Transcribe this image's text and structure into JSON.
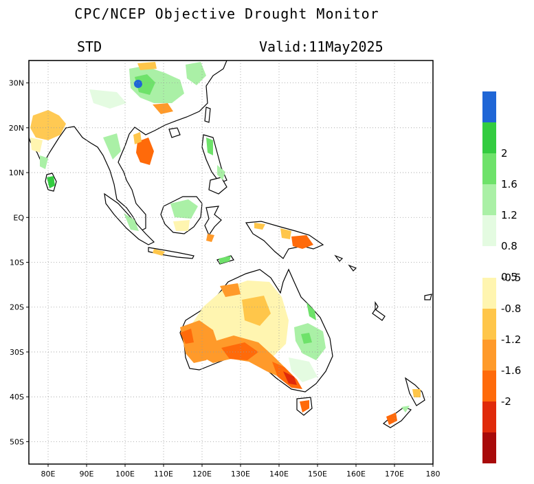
{
  "header": {
    "title": "CPC/NCEP Objective Drought Monitor",
    "variable": "STD",
    "valid": "Valid:11May2025"
  },
  "map": {
    "lon_range": [
      75,
      180
    ],
    "lat_range": [
      -55,
      35
    ],
    "lon_ticks": [
      {
        "value": 80,
        "label": "80E"
      },
      {
        "value": 90,
        "label": "90E"
      },
      {
        "value": 100,
        "label": "100E"
      },
      {
        "value": 110,
        "label": "110E"
      },
      {
        "value": 120,
        "label": "120E"
      },
      {
        "value": 130,
        "label": "130E"
      },
      {
        "value": 140,
        "label": "140E"
      },
      {
        "value": 150,
        "label": "150E"
      },
      {
        "value": 160,
        "label": "160E"
      },
      {
        "value": 170,
        "label": "170E"
      },
      {
        "value": 180,
        "label": "180"
      }
    ],
    "lat_ticks": [
      {
        "value": 30,
        "label": "30N"
      },
      {
        "value": 20,
        "label": "20N"
      },
      {
        "value": 10,
        "label": "10N"
      },
      {
        "value": 0,
        "label": "EQ"
      },
      {
        "value": -10,
        "label": "10S"
      },
      {
        "value": -20,
        "label": "20S"
      },
      {
        "value": -30,
        "label": "30S"
      },
      {
        "value": -40,
        "label": "40S"
      },
      {
        "value": -50,
        "label": "50S"
      }
    ],
    "gridlines": true
  },
  "colorbar": {
    "wet": [
      {
        "color": "#1f66d6",
        "label": ""
      },
      {
        "color": "#33cc40",
        "label": "2"
      },
      {
        "color": "#6ee26a",
        "label": "1.6"
      },
      {
        "color": "#aaf0a6",
        "label": "1.2"
      },
      {
        "color": "#e4fbe1",
        "label": "0.8"
      },
      {
        "color": "#ffffff",
        "label": "0.5"
      }
    ],
    "dry": [
      {
        "color": "#fff5b0",
        "label": "-0.5"
      },
      {
        "color": "#ffc64a",
        "label": "-0.8"
      },
      {
        "color": "#ff9a2a",
        "label": "-1.2"
      },
      {
        "color": "#ff6a0a",
        "label": "-1.6"
      },
      {
        "color": "#e02a0a",
        "label": "-2"
      },
      {
        "color": "#a80a0a",
        "label": ""
      }
    ]
  },
  "colors": {
    "dry_light": "#fff5b0",
    "dry_mid": "#ffc64a",
    "dry_strong": "#ff9a2a",
    "dry_severe": "#ff6a0a",
    "dry_extreme": "#e02a0a",
    "wet_light": "#e4fbe1",
    "wet_mid": "#aaf0a6",
    "wet_strong": "#6ee26a",
    "wet_severe": "#33cc40",
    "wet_extreme": "#1f66d6"
  }
}
